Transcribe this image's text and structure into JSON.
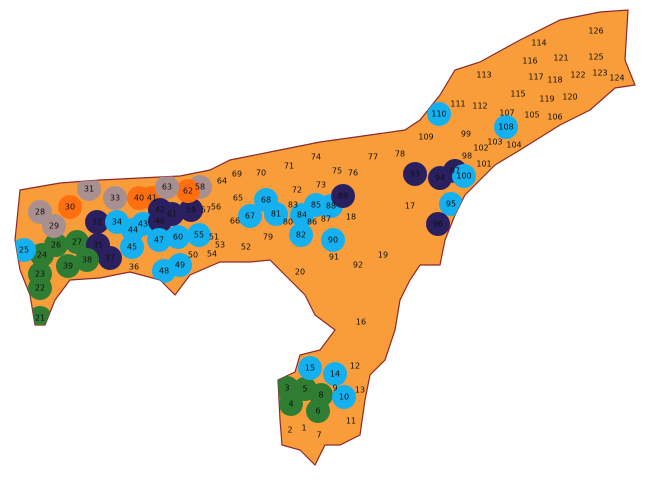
{
  "map": {
    "base_color": "#f99d3a",
    "border_color": "#8b2a2a",
    "regions": [
      {
        "label": "1",
        "color": "#f99d3a"
      },
      {
        "label": "2",
        "color": "#f99d3a"
      },
      {
        "label": "3",
        "color": "#2e7d32"
      },
      {
        "label": "4",
        "color": "#2e7d32"
      },
      {
        "label": "5",
        "color": "#2e7d32"
      },
      {
        "label": "6",
        "color": "#2e7d32"
      },
      {
        "label": "7",
        "color": "#f99d3a"
      },
      {
        "label": "8",
        "color": "#2e7d32"
      },
      {
        "label": "9",
        "color": "#f99d3a"
      },
      {
        "label": "10",
        "color": "#14b0ef"
      },
      {
        "label": "11",
        "color": "#f99d3a"
      },
      {
        "label": "12",
        "color": "#f99d3a"
      },
      {
        "label": "13",
        "color": "#f99d3a"
      },
      {
        "label": "14",
        "color": "#14b0ef"
      },
      {
        "label": "15",
        "color": "#14b0ef"
      },
      {
        "label": "16",
        "color": "#f99d3a"
      },
      {
        "label": "17",
        "color": "#f99d3a"
      },
      {
        "label": "18",
        "color": "#f99d3a"
      },
      {
        "label": "19",
        "color": "#f99d3a"
      },
      {
        "label": "20",
        "color": "#f99d3a"
      },
      {
        "label": "21",
        "color": "#2e7d32"
      },
      {
        "label": "22",
        "color": "#2e7d32"
      },
      {
        "label": "23",
        "color": "#2e7d32"
      },
      {
        "label": "24",
        "color": "#2e7d32"
      },
      {
        "label": "25",
        "color": "#14b0ef"
      },
      {
        "label": "26",
        "color": "#2e7d32"
      },
      {
        "label": "27",
        "color": "#2e7d32"
      },
      {
        "label": "28",
        "color": "#a89090"
      },
      {
        "label": "29",
        "color": "#a89090"
      },
      {
        "label": "30",
        "color": "#ff6f10"
      },
      {
        "label": "31",
        "color": "#a89090"
      },
      {
        "label": "32",
        "color": "#2a1f5f"
      },
      {
        "label": "33",
        "color": "#a89090"
      },
      {
        "label": "34",
        "color": "#14b0ef"
      },
      {
        "label": "35",
        "color": "#2a1f5f"
      },
      {
        "label": "36",
        "color": "#f99d3a"
      },
      {
        "label": "37",
        "color": "#2a1f5f"
      },
      {
        "label": "38",
        "color": "#2e7d32"
      },
      {
        "label": "39",
        "color": "#2e7d32"
      },
      {
        "label": "40",
        "color": "#ff6f10"
      },
      {
        "label": "41",
        "color": "#ff6f10"
      },
      {
        "label": "42",
        "color": "#2a1f5f"
      },
      {
        "label": "43",
        "color": "#14b0ef"
      },
      {
        "label": "44",
        "color": "#14b0ef"
      },
      {
        "label": "45",
        "color": "#14b0ef"
      },
      {
        "label": "46",
        "color": "#2a1f5f"
      },
      {
        "label": "47",
        "color": "#14b0ef"
      },
      {
        "label": "48",
        "color": "#14b0ef"
      },
      {
        "label": "49",
        "color": "#14b0ef"
      },
      {
        "label": "50",
        "color": "#f99d3a"
      },
      {
        "label": "51",
        "color": "#f99d3a"
      },
      {
        "label": "52",
        "color": "#f99d3a"
      },
      {
        "label": "53",
        "color": "#f99d3a"
      },
      {
        "label": "54",
        "color": "#f99d3a"
      },
      {
        "label": "55",
        "color": "#14b0ef"
      },
      {
        "label": "56",
        "color": "#f99d3a"
      },
      {
        "label": "57",
        "color": "#f99d3a"
      },
      {
        "label": "58",
        "color": "#a89090"
      },
      {
        "label": "59",
        "color": "#2a1f5f"
      },
      {
        "label": "60",
        "color": "#14b0ef"
      },
      {
        "label": "61",
        "color": "#2a1f5f"
      },
      {
        "label": "62",
        "color": "#ff6f10"
      },
      {
        "label": "63",
        "color": "#a89090"
      },
      {
        "label": "64",
        "color": "#f99d3a"
      },
      {
        "label": "65",
        "color": "#f99d3a"
      },
      {
        "label": "66",
        "color": "#f99d3a"
      },
      {
        "label": "67",
        "color": "#14b0ef"
      },
      {
        "label": "68",
        "color": "#14b0ef"
      },
      {
        "label": "69",
        "color": "#f99d3a"
      },
      {
        "label": "70",
        "color": "#f99d3a"
      },
      {
        "label": "71",
        "color": "#f99d3a"
      },
      {
        "label": "72",
        "color": "#f99d3a"
      },
      {
        "label": "73",
        "color": "#f99d3a"
      },
      {
        "label": "74",
        "color": "#f99d3a"
      },
      {
        "label": "75",
        "color": "#f99d3a"
      },
      {
        "label": "76",
        "color": "#f99d3a"
      },
      {
        "label": "77",
        "color": "#f99d3a"
      },
      {
        "label": "78",
        "color": "#f99d3a"
      },
      {
        "label": "79",
        "color": "#f99d3a"
      },
      {
        "label": "80",
        "color": "#f99d3a"
      },
      {
        "label": "81",
        "color": "#14b0ef"
      },
      {
        "label": "82",
        "color": "#14b0ef"
      },
      {
        "label": "83",
        "color": "#f99d3a"
      },
      {
        "label": "84",
        "color": "#14b0ef"
      },
      {
        "label": "85",
        "color": "#14b0ef"
      },
      {
        "label": "86",
        "color": "#f99d3a"
      },
      {
        "label": "87",
        "color": "#f99d3a"
      },
      {
        "label": "88",
        "color": "#14b0ef"
      },
      {
        "label": "89",
        "color": "#2a1f5f"
      },
      {
        "label": "90",
        "color": "#14b0ef"
      },
      {
        "label": "91",
        "color": "#f99d3a"
      },
      {
        "label": "92",
        "color": "#f99d3a"
      },
      {
        "label": "93",
        "color": "#2a1f5f"
      },
      {
        "label": "94",
        "color": "#2a1f5f"
      },
      {
        "label": "95",
        "color": "#14b0ef"
      },
      {
        "label": "96",
        "color": "#2a1f5f"
      },
      {
        "label": "97",
        "color": "#2a1f5f"
      },
      {
        "label": "98",
        "color": "#f99d3a"
      },
      {
        "label": "99",
        "color": "#f99d3a"
      },
      {
        "label": "100",
        "color": "#14b0ef"
      },
      {
        "label": "101",
        "color": "#f99d3a"
      },
      {
        "label": "102",
        "color": "#f99d3a"
      },
      {
        "label": "103",
        "color": "#f99d3a"
      },
      {
        "label": "104",
        "color": "#f99d3a"
      },
      {
        "label": "105",
        "color": "#f99d3a"
      },
      {
        "label": "106",
        "color": "#f99d3a"
      },
      {
        "label": "107",
        "color": "#f99d3a"
      },
      {
        "label": "108",
        "color": "#14b0ef"
      },
      {
        "label": "109",
        "color": "#f99d3a"
      },
      {
        "label": "110",
        "color": "#14b0ef"
      },
      {
        "label": "111",
        "color": "#f99d3a"
      },
      {
        "label": "112",
        "color": "#f99d3a"
      },
      {
        "label": "113",
        "color": "#f99d3a"
      },
      {
        "label": "114",
        "color": "#f99d3a"
      },
      {
        "label": "115",
        "color": "#f99d3a"
      },
      {
        "label": "116",
        "color": "#f99d3a"
      },
      {
        "label": "117",
        "color": "#f99d3a"
      },
      {
        "label": "118",
        "color": "#f99d3a"
      },
      {
        "label": "119",
        "color": "#f99d3a"
      },
      {
        "label": "120",
        "color": "#f99d3a"
      },
      {
        "label": "121",
        "color": "#f99d3a"
      },
      {
        "label": "122",
        "color": "#f99d3a"
      },
      {
        "label": "123",
        "color": "#f99d3a"
      },
      {
        "label": "124",
        "color": "#f99d3a"
      },
      {
        "label": "125",
        "color": "#f99d3a"
      },
      {
        "label": "126",
        "color": "#f99d3a"
      }
    ]
  }
}
